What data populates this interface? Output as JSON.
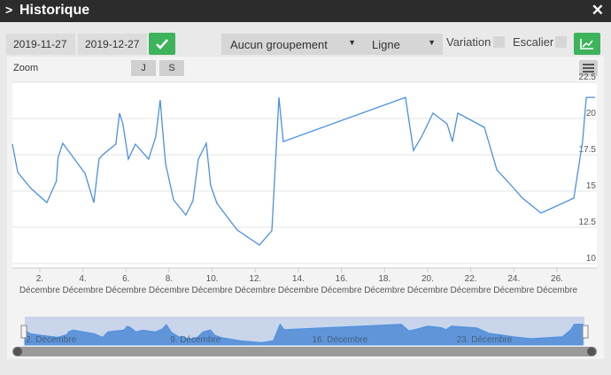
{
  "header": {
    "title": "Historique"
  },
  "controls": {
    "start_date": "2019-11-27",
    "end_date": "2019-12-27",
    "grouping": "Aucun groupement",
    "chart_style": "Ligne",
    "variation": "Variation",
    "staircase": "Escalier"
  },
  "zoom": {
    "label": "Zoom",
    "buttons": [
      "J",
      "S"
    ]
  },
  "chart_data": {
    "type": "line",
    "color": "#4a90e2",
    "grid": true,
    "x": [
      0.73,
      0.98,
      1.59,
      2.33,
      2.77,
      2.85,
      3.07,
      4.1,
      4.51,
      4.75,
      4.92,
      5.53,
      5.7,
      5.86,
      6.11,
      6.44,
      7.05,
      7.38,
      7.59,
      7.75,
      7.84,
      8.21,
      8.78,
      9.11,
      9.36,
      9.73,
      9.93,
      10.22,
      11.16,
      12.19,
      12.77,
      13.1,
      13.3,
      18.97,
      19.34,
      19.71,
      20.25,
      20.9,
      21.15,
      21.4,
      22.63,
      23.21,
      23.82,
      24.4,
      25.26,
      26.78,
      27.19,
      27.36,
      27.77
    ],
    "values": [
      18.23,
      16.28,
      15.18,
      14.21,
      15.67,
      17.32,
      18.29,
      16.22,
      14.21,
      17.2,
      17.5,
      18.23,
      20.37,
      19.63,
      17.2,
      18.23,
      17.2,
      18.72,
      21.28,
      18.41,
      16.89,
      14.39,
      13.35,
      14.33,
      17.2,
      18.29,
      15.37,
      14.15,
      12.32,
      11.28,
      12.26,
      21.46,
      18.41,
      21.46,
      17.8,
      18.72,
      20.37,
      19.63,
      18.41,
      20.37,
      19.39,
      16.46,
      15.49,
      14.51,
      13.48,
      14.51,
      18.41,
      21.46,
      21.46
    ],
    "xlim": [
      0.73,
      27.85
    ],
    "xticks": [
      {
        "value": 2,
        "label": "2."
      },
      {
        "value": 4,
        "label": "4."
      },
      {
        "value": 6,
        "label": "6."
      },
      {
        "value": 8,
        "label": "8."
      },
      {
        "value": 10,
        "label": "10."
      },
      {
        "value": 12,
        "label": "12."
      },
      {
        "value": 14,
        "label": "14."
      },
      {
        "value": 16,
        "label": "16."
      },
      {
        "value": 18,
        "label": "18."
      },
      {
        "value": 20,
        "label": "20."
      },
      {
        "value": 22,
        "label": "22."
      },
      {
        "value": 24,
        "label": "24."
      },
      {
        "value": 26,
        "label": "26."
      }
    ],
    "x_sublabel": "Décembre",
    "ylim": [
      10,
      22.5
    ],
    "yticks": [
      10,
      12.5,
      15,
      17.5,
      20,
      22.5
    ],
    "navigator_ticks": [
      {
        "value": 2,
        "label": "2. Décembre"
      },
      {
        "value": 9,
        "label": "9. Décembre"
      },
      {
        "value": 16,
        "label": "16. Décembre"
      },
      {
        "value": 23,
        "label": "23. Décembre"
      }
    ]
  }
}
